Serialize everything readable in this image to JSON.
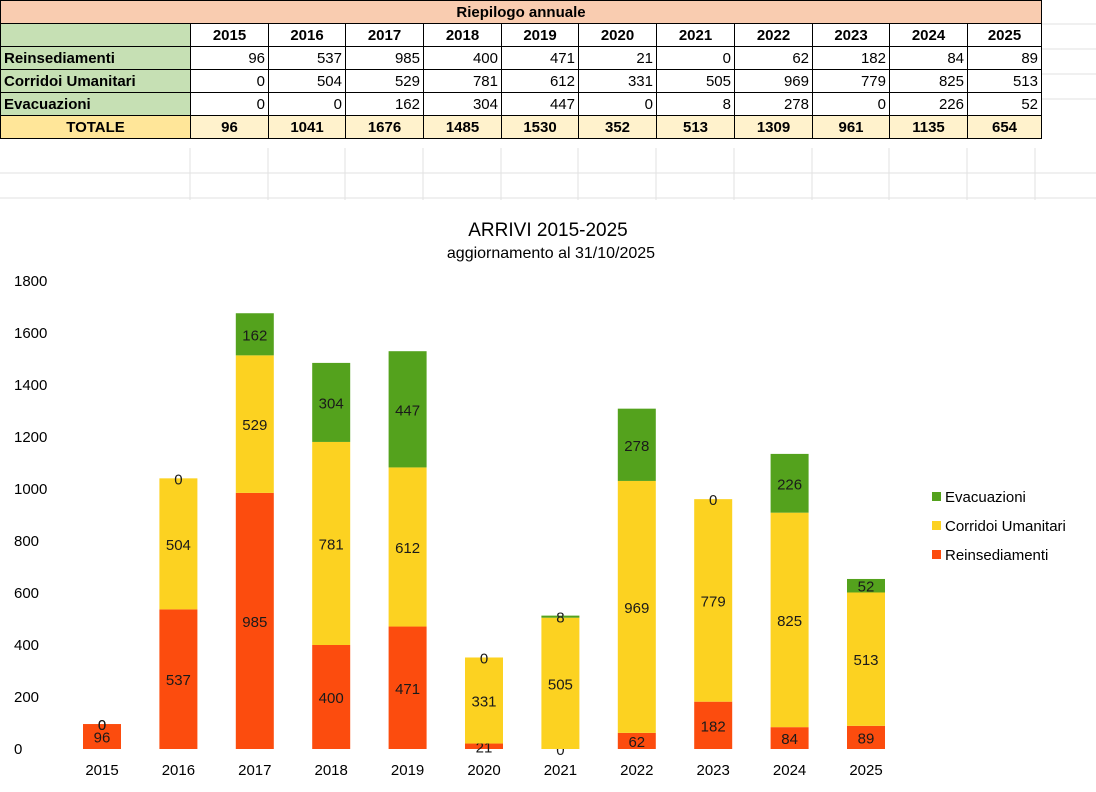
{
  "table": {
    "title": "Riepilogo annuale",
    "years": [
      "2015",
      "2016",
      "2017",
      "2018",
      "2019",
      "2020",
      "2021",
      "2022",
      "2023",
      "2024",
      "2025"
    ],
    "rows": [
      {
        "label": "Reinsediamenti",
        "values": [
          "96",
          "537",
          "985",
          "400",
          "471",
          "21",
          "0",
          "62",
          "182",
          "84",
          "89"
        ]
      },
      {
        "label": "Corridoi Umanitari",
        "values": [
          "0",
          "504",
          "529",
          "781",
          "612",
          "331",
          "505",
          "969",
          "779",
          "825",
          "513"
        ]
      },
      {
        "label": "Evacuazioni",
        "values": [
          "0",
          "0",
          "162",
          "304",
          "447",
          "0",
          "8",
          "278",
          "0",
          "226",
          "52"
        ]
      }
    ],
    "total": {
      "label": "TOTALE",
      "values": [
        "96",
        "1041",
        "1676",
        "1485",
        "1530",
        "352",
        "513",
        "1309",
        "961",
        "1135",
        "654"
      ]
    }
  },
  "chart_data": {
    "type": "bar",
    "stacked": true,
    "title": "ARRIVI 2015-2025",
    "subtitle": "aggiornamento al 31/10/2025",
    "categories": [
      "2015",
      "2016",
      "2017",
      "2018",
      "2019",
      "2020",
      "2021",
      "2022",
      "2023",
      "2024",
      "2025"
    ],
    "series": [
      {
        "name": "Reinsediamenti",
        "color": "#fc4c0e",
        "values": [
          96,
          537,
          985,
          400,
          471,
          21,
          0,
          62,
          182,
          84,
          89
        ]
      },
      {
        "name": "Corridoi Umanitari",
        "color": "#fcd221",
        "values": [
          0,
          504,
          529,
          781,
          612,
          331,
          505,
          969,
          779,
          825,
          513
        ]
      },
      {
        "name": "Evacuazioni",
        "color": "#54a21d",
        "values": [
          0,
          0,
          162,
          304,
          447,
          0,
          8,
          278,
          0,
          226,
          52
        ]
      }
    ],
    "legend_order": [
      "Evacuazioni",
      "Corridoi Umanitari",
      "Reinsediamenti"
    ],
    "legend_position": "right",
    "ylim": [
      0,
      1800
    ],
    "yticks": [
      "0",
      "200",
      "400",
      "600",
      "800",
      "1000",
      "1200",
      "1400",
      "1600",
      "1800"
    ],
    "xlabel": "",
    "ylabel": "",
    "grid": false
  }
}
